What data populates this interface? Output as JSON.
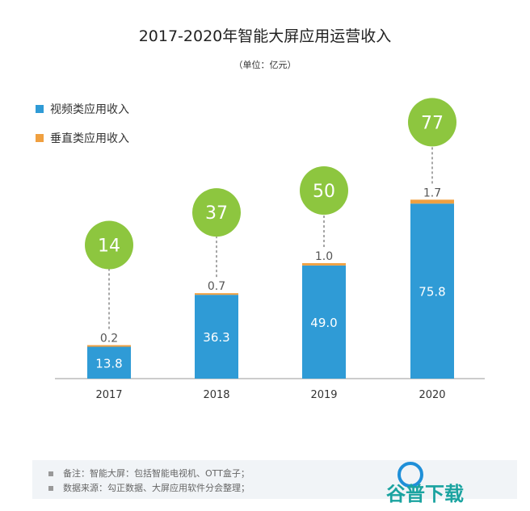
{
  "chart_data": {
    "type": "bar",
    "stacked": true,
    "title": "2017-2020年智能大屏应用运营收入",
    "subtitle": "（单位：亿元）",
    "categories": [
      "2017",
      "2018",
      "2019",
      "2020"
    ],
    "series": [
      {
        "name": "视频类应用收入",
        "color": "#2f9bd6",
        "values": [
          13.8,
          36.3,
          49.0,
          75.8
        ],
        "labels": [
          "13.8",
          "36.3",
          "49.0",
          "75.8"
        ]
      },
      {
        "name": "垂直类应用收入",
        "color": "#f0a040",
        "values": [
          0.2,
          0.7,
          1.0,
          1.7
        ],
        "labels": [
          "0.2",
          "0.7",
          "1.0",
          "1.7"
        ]
      }
    ],
    "totals": [
      "14",
      "37",
      "50",
      "77"
    ],
    "total_color": "#8dc63f",
    "legend_position": "top-left",
    "grid": false
  },
  "notes": [
    "备注：智能大屏：包括智能电视机、OTT盒子；",
    "数据来源：勾正数据、大屏应用软件分会整理；"
  ],
  "watermark": "谷普下载"
}
